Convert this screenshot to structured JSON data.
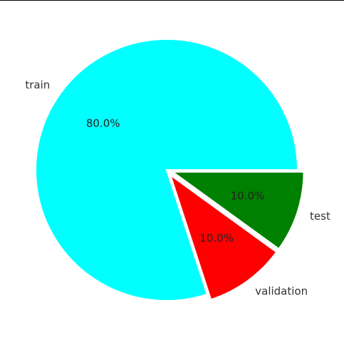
{
  "chart_data": {
    "type": "pie",
    "title": "",
    "categories": [
      "train",
      "validation",
      "test"
    ],
    "values": [
      80.0,
      10.0,
      10.0
    ],
    "percent_labels": [
      "80.0%",
      "10.0%",
      "10.0%"
    ],
    "colors": [
      "#00ffff",
      "#ff0000",
      "#008000"
    ],
    "exploded": [
      false,
      true,
      true
    ],
    "start_angle_deg": 0,
    "direction": "counterclockwise",
    "legend": "none"
  }
}
